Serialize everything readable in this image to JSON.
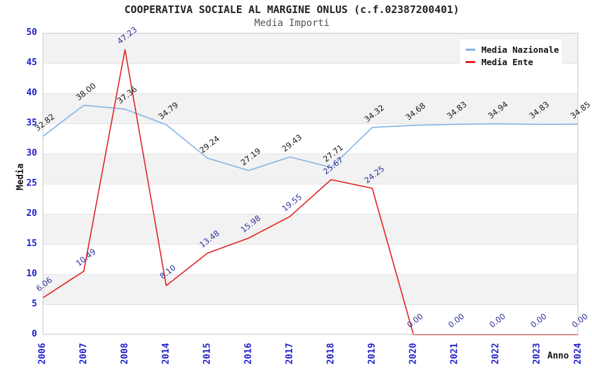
{
  "header": {
    "title": "COOPERATIVA SOCIALE AL MARGINE ONLUS (c.f.02387200401)",
    "subtitle": "Media Importi"
  },
  "chart_data": {
    "type": "line",
    "title": "COOPERATIVA SOCIALE AL MARGINE ONLUS (c.f.02387200401)",
    "subtitle": "Media Importi",
    "xlabel": "Anno",
    "ylabel": "Media",
    "ylim": [
      0,
      50
    ],
    "y_ticks": [
      0,
      5,
      10,
      15,
      20,
      25,
      30,
      35,
      40,
      45,
      50
    ],
    "grid": "horizontal-alternating-bands",
    "legend_position": "top-right-inside",
    "categories": [
      "2006",
      "2007",
      "2008",
      "2014",
      "2015",
      "2016",
      "2017",
      "2018",
      "2019",
      "2020",
      "2021",
      "2022",
      "2023",
      "2024"
    ],
    "series": [
      {
        "name": "Media Nazionale",
        "color": "#85b2e3",
        "label_color": "#1a1a1a",
        "values": [
          32.82,
          38.0,
          37.36,
          34.79,
          29.24,
          27.19,
          29.43,
          27.71,
          34.32,
          34.68,
          34.83,
          34.94,
          34.83,
          34.85
        ]
      },
      {
        "name": "Media Ente",
        "color": "#e02222",
        "label_color": "#2f3399",
        "values": [
          6.06,
          10.49,
          47.23,
          8.1,
          13.48,
          15.98,
          19.55,
          25.67,
          24.25,
          0.0,
          0.0,
          0.0,
          0.0,
          0.0
        ]
      }
    ]
  },
  "colors": {
    "tick_label": "#2020cc",
    "band_gray": "#f2f2f2",
    "band_white": "#ffffff",
    "band_line": "#e4e4e4",
    "plot_border": "#c9c9c9"
  }
}
